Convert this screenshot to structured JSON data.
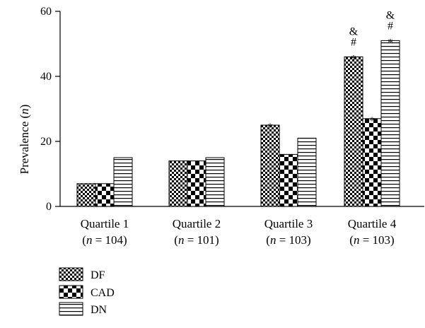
{
  "chart_data": {
    "type": "bar",
    "title": "",
    "xlabel": "",
    "ylabel": "Prevalence (n)",
    "ylabel_text": "Prevalence (",
    "ylabel_var": "n",
    "ylabel_end": ")",
    "ylim": [
      0,
      60
    ],
    "yticks": [
      0,
      20,
      40,
      60
    ],
    "categories": [
      "Quartile 1",
      "Quartile 2",
      "Quartile 3",
      "Quartile 4"
    ],
    "category_n": [
      "(n = 104)",
      "(n = 101)",
      "(n = 103)",
      "(n = 103)"
    ],
    "category_n_values": [
      "104",
      "101",
      "103",
      "103"
    ],
    "series": [
      {
        "name": "DF",
        "pattern": "checker-fine",
        "values": [
          7,
          14,
          25,
          46
        ]
      },
      {
        "name": "CAD",
        "pattern": "checker-coarse",
        "values": [
          7,
          14,
          16,
          27
        ]
      },
      {
        "name": "DN",
        "pattern": "horizontal-lines",
        "values": [
          15,
          15,
          21,
          51
        ]
      }
    ],
    "annotations": [
      {
        "category": 2,
        "series": 0,
        "marks": [
          "*"
        ]
      },
      {
        "category": 3,
        "series": 0,
        "marks": [
          "&",
          "#",
          "*"
        ]
      },
      {
        "category": 3,
        "series": 1,
        "marks": [
          "*"
        ]
      },
      {
        "category": 3,
        "series": 2,
        "marks": [
          "&",
          "#",
          "*"
        ]
      }
    ],
    "legend_position": "bottom-left",
    "grid": false
  }
}
